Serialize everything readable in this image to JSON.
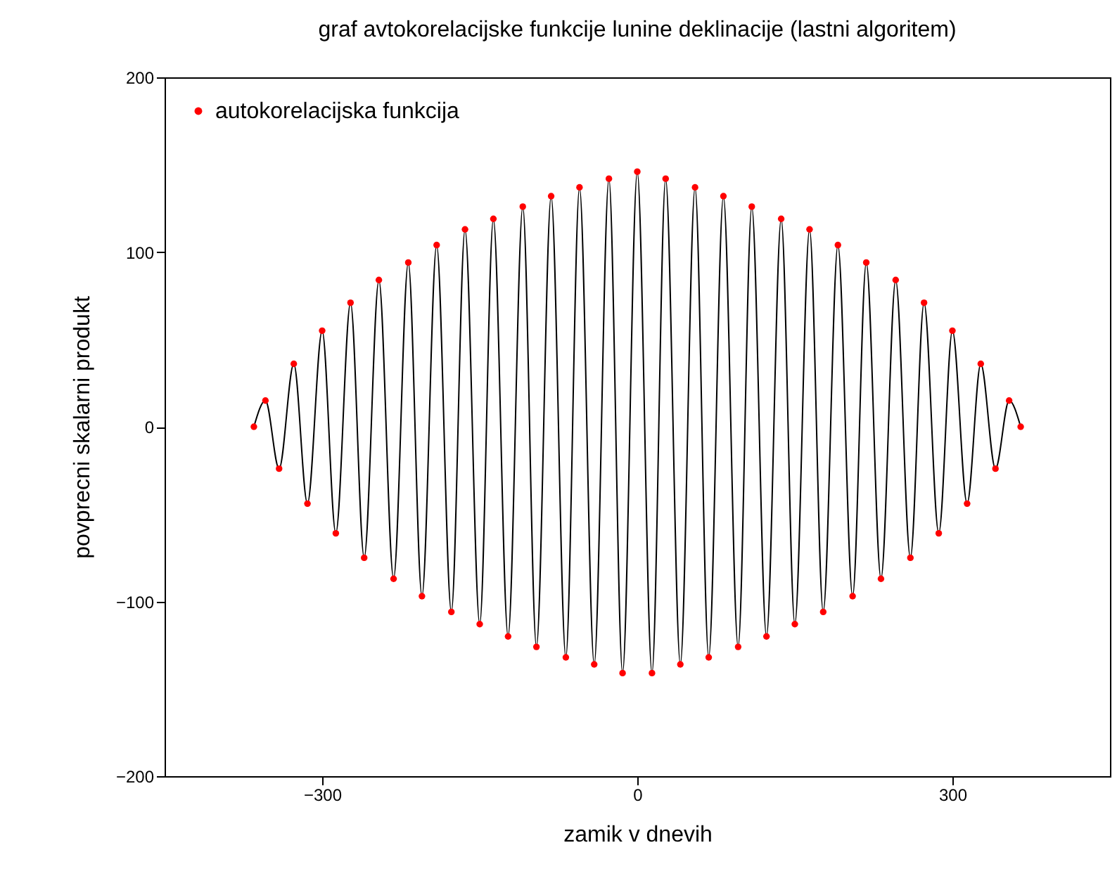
{
  "chart_data": {
    "type": "line",
    "title": "graf avtokorelacijske funkcije lunine deklinacije (lastni algoritem)",
    "xlabel": "zamik v dnevih",
    "ylabel": "povprecni skalarni produkt",
    "x": [
      -365,
      -354,
      -341,
      -327,
      -314,
      -300,
      -287,
      -273,
      -260,
      -246,
      -232,
      -218,
      -205,
      -191,
      -177,
      -164,
      -150,
      -137,
      -123,
      -109,
      -96,
      -82,
      -68,
      -55,
      -41,
      -27,
      -14,
      0,
      14,
      27,
      41,
      55,
      68,
      82,
      96,
      109,
      123,
      137,
      150,
      164,
      177,
      191,
      205,
      218,
      232,
      246,
      260,
      273,
      287,
      300,
      314,
      327,
      341,
      354,
      365
    ],
    "series": [
      {
        "name": "autokorelacijska funkcija",
        "color": "#ff0000",
        "values": [
          0,
          15,
          -24,
          36,
          -44,
          55,
          -61,
          71,
          -75,
          84,
          -87,
          94,
          -97,
          104,
          -106,
          113,
          -113,
          119,
          -120,
          126,
          -126,
          132,
          -132,
          137,
          -136,
          142,
          -141,
          146,
          -141,
          142,
          -136,
          137,
          -132,
          132,
          -126,
          126,
          -120,
          119,
          -113,
          113,
          -106,
          104,
          -97,
          94,
          -87,
          84,
          -75,
          71,
          -61,
          55,
          -44,
          36,
          -24,
          15,
          0
        ]
      }
    ],
    "xlim": [
      -450,
      450
    ],
    "xticks": [
      -300,
      0,
      300
    ],
    "ylim": [
      -200,
      200
    ],
    "yticks": [
      -200,
      -100,
      0,
      100,
      200
    ],
    "grid": false,
    "legend": "top left",
    "marker": "circle",
    "line_style": "solid"
  }
}
